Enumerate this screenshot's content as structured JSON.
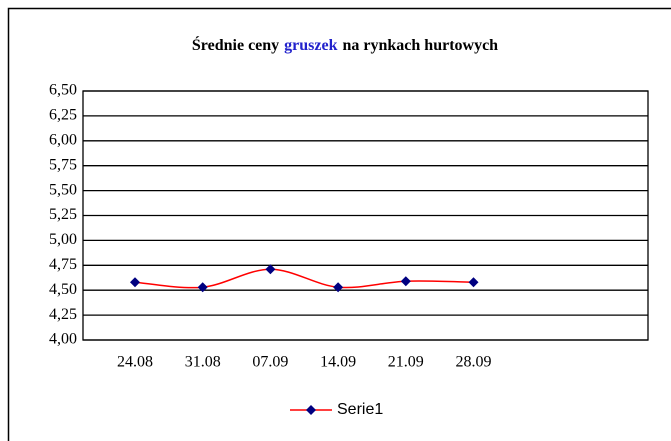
{
  "chart_data": {
    "type": "line",
    "title_parts": [
      "Średnie ceny",
      "gruszek",
      "na rynkach hurtowych"
    ],
    "title_colors": [
      "#000000",
      "#2222cc",
      "#000000"
    ],
    "categories": [
      "24.08",
      "31.08",
      "07.09",
      "14.09",
      "21.09",
      "28.09"
    ],
    "series": [
      {
        "name": "Serie1",
        "color": "#ff0000",
        "marker_color": "#000080",
        "values": [
          4.58,
          4.53,
          4.71,
          4.53,
          4.59,
          4.58
        ]
      }
    ],
    "ylim": [
      4.0,
      6.5
    ],
    "yticks": [
      {
        "value": 4.0,
        "label": "4,00"
      },
      {
        "value": 4.25,
        "label": "4,25"
      },
      {
        "value": 4.5,
        "label": "4,50"
      },
      {
        "value": 4.75,
        "label": "4,75"
      },
      {
        "value": 5.0,
        "label": "5,00"
      },
      {
        "value": 5.25,
        "label": "5,25"
      },
      {
        "value": 5.5,
        "label": "5,50"
      },
      {
        "value": 5.75,
        "label": "5,75"
      },
      {
        "value": 6.0,
        "label": "6,00"
      },
      {
        "value": 6.25,
        "label": "6,25"
      },
      {
        "value": 6.5,
        "label": "6,50"
      }
    ],
    "grid": true
  }
}
